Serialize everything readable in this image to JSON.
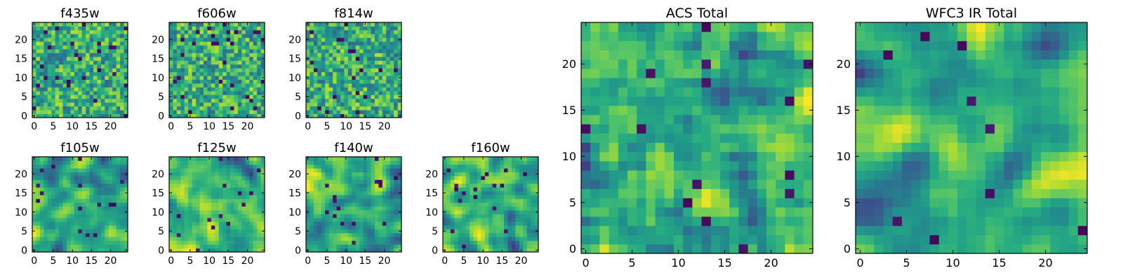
{
  "chart_data": [
    {
      "type": "heatmap",
      "title": "f435w",
      "xticks": [
        0,
        5,
        10,
        15,
        20
      ],
      "yticks": [
        0,
        5,
        10,
        15,
        20
      ],
      "xlim": [
        -0.5,
        24.5
      ],
      "ylim": [
        -0.5,
        24.5
      ],
      "grid_size": [
        25,
        25
      ],
      "colormap": "viridis",
      "values": []
    },
    {
      "type": "heatmap",
      "title": "f606w",
      "xticks": [
        0,
        5,
        10,
        15,
        20
      ],
      "yticks": [
        0,
        5,
        10,
        15,
        20
      ],
      "xlim": [
        -0.5,
        24.5
      ],
      "ylim": [
        -0.5,
        24.5
      ],
      "grid_size": [
        25,
        25
      ],
      "colormap": "viridis",
      "values": []
    },
    {
      "type": "heatmap",
      "title": "f814w",
      "xticks": [
        0,
        5,
        10,
        15,
        20
      ],
      "yticks": [
        0,
        5,
        10,
        15,
        20
      ],
      "xlim": [
        -0.5,
        24.5
      ],
      "ylim": [
        -0.5,
        24.5
      ],
      "grid_size": [
        25,
        25
      ],
      "colormap": "viridis",
      "values": []
    },
    {
      "type": "heatmap",
      "title": "f105w",
      "xticks": [
        0,
        5,
        10,
        15,
        20
      ],
      "yticks": [
        0,
        5,
        10,
        15,
        20
      ],
      "xlim": [
        -0.5,
        24.5
      ],
      "ylim": [
        -0.5,
        24.5
      ],
      "grid_size": [
        25,
        25
      ],
      "colormap": "viridis",
      "values": []
    },
    {
      "type": "heatmap",
      "title": "f125w",
      "xticks": [
        0,
        5,
        10,
        15,
        20
      ],
      "yticks": [
        0,
        5,
        10,
        15,
        20
      ],
      "xlim": [
        -0.5,
        24.5
      ],
      "ylim": [
        -0.5,
        24.5
      ],
      "grid_size": [
        25,
        25
      ],
      "colormap": "viridis",
      "values": []
    },
    {
      "type": "heatmap",
      "title": "f140w",
      "xticks": [
        0,
        5,
        10,
        15,
        20
      ],
      "yticks": [
        0,
        5,
        10,
        15,
        20
      ],
      "xlim": [
        -0.5,
        24.5
      ],
      "ylim": [
        -0.5,
        24.5
      ],
      "grid_size": [
        25,
        25
      ],
      "colormap": "viridis",
      "values": []
    },
    {
      "type": "heatmap",
      "title": "f160w",
      "xticks": [
        0,
        5,
        10,
        15,
        20
      ],
      "yticks": [
        0,
        5,
        10,
        15,
        20
      ],
      "xlim": [
        -0.5,
        24.5
      ],
      "ylim": [
        -0.5,
        24.5
      ],
      "grid_size": [
        25,
        25
      ],
      "colormap": "viridis",
      "values": []
    },
    {
      "type": "heatmap",
      "title": "ACS Total",
      "xticks": [
        0,
        5,
        10,
        15,
        20
      ],
      "yticks": [
        0,
        5,
        10,
        15,
        20
      ],
      "xlim": [
        -0.5,
        24.5
      ],
      "ylim": [
        -0.5,
        24.5
      ],
      "grid_size": [
        25,
        25
      ],
      "colormap": "viridis",
      "values": []
    },
    {
      "type": "heatmap",
      "title": "WFC3 IR Total",
      "xticks": [
        0,
        5,
        10,
        15,
        20
      ],
      "yticks": [
        0,
        5,
        10,
        15,
        20
      ],
      "xlim": [
        -0.5,
        24.5
      ],
      "ylim": [
        -0.5,
        24.5
      ],
      "grid_size": [
        25,
        25
      ],
      "colormap": "viridis",
      "values": []
    }
  ],
  "colors": {
    "viridis_dark": "#440154",
    "viridis_mid": "#21918c",
    "viridis_bright": "#fde725",
    "frame": "#000000"
  }
}
